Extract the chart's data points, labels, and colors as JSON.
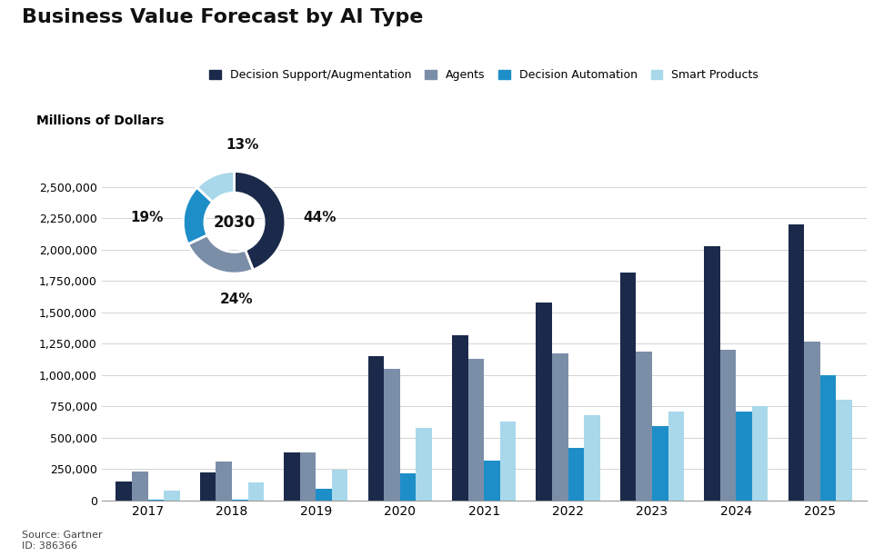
{
  "title": "Business Value Forecast by AI Type",
  "ylabel": "Millions of Dollars",
  "source": "Source: Gartner\nID: 386366",
  "years": [
    2017,
    2018,
    2019,
    2020,
    2021,
    2022,
    2023,
    2024,
    2025
  ],
  "series": {
    "Decision Support/Augmentation": [
      150000,
      220000,
      380000,
      1150000,
      1320000,
      1580000,
      1820000,
      2030000,
      2200000
    ],
    "Agents": [
      230000,
      310000,
      380000,
      1050000,
      1130000,
      1170000,
      1190000,
      1200000,
      1270000
    ],
    "Decision Automation": [
      8000,
      4000,
      95000,
      215000,
      315000,
      420000,
      590000,
      710000,
      1000000
    ],
    "Smart Products": [
      75000,
      140000,
      245000,
      580000,
      630000,
      680000,
      710000,
      750000,
      800000
    ]
  },
  "colors": {
    "Decision Support/Augmentation": "#1b2a4a",
    "Agents": "#7b8ea8",
    "Decision Automation": "#1e8ec8",
    "Smart Products": "#a8d8ea"
  },
  "donut": {
    "values": [
      44,
      24,
      19,
      13
    ],
    "colors": [
      "#1b2a4a",
      "#7b8ea8",
      "#1e8ec8",
      "#a8d8ea"
    ],
    "center_text": "2030"
  },
  "ylim": [
    0,
    2750000
  ],
  "yticks": [
    0,
    250000,
    500000,
    750000,
    1000000,
    1250000,
    1500000,
    1750000,
    2000000,
    2250000,
    2500000
  ],
  "ytick_labels": [
    "0",
    "250,000",
    "500,000",
    "750,000",
    "1,000,000",
    "1,250,000",
    "1,500,000",
    "1,750,000",
    "2,000,000",
    "2,250,000",
    "2,500,000"
  ],
  "background_color": "#ffffff",
  "legend_order": [
    "Decision Support/Augmentation",
    "Agents",
    "Decision Automation",
    "Smart Products"
  ]
}
